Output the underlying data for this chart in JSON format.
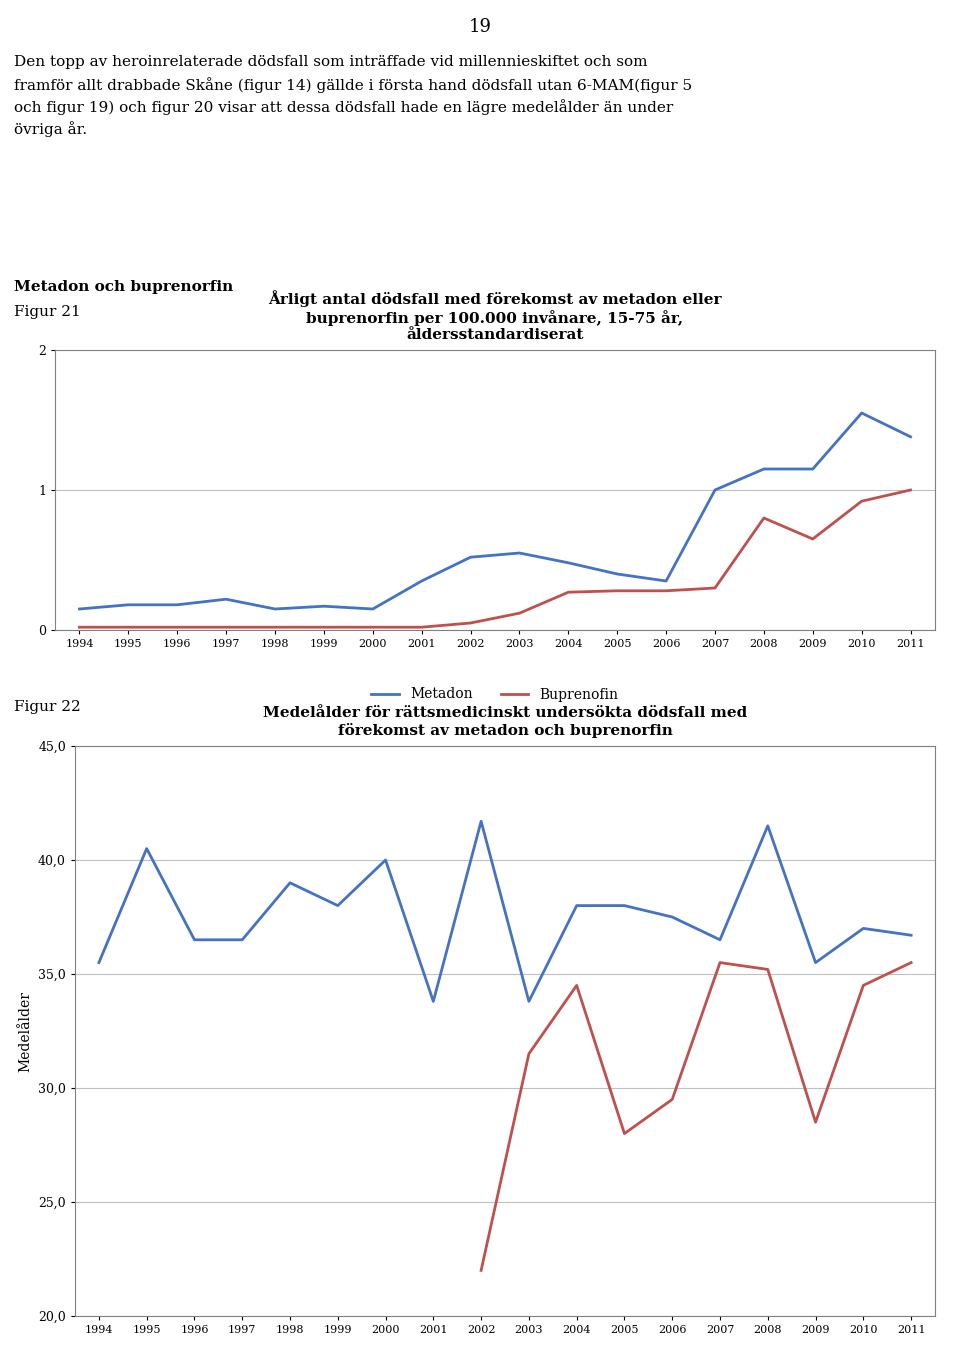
{
  "page_number": "19",
  "body_text": "Den topp av heroinrelaterade dödsfall som inträffade vid millennieskiftet och som\nframför allt drabbade Skåne (figur 14) gällde i första hand dödsfall utan 6-MAM(figur 5\noch figur 19) och figur 20 visar att dessa dödsfall hade en lägre medelålder än under\növriga år.",
  "section_heading": "Metadon och buprenorfin",
  "fig21_label": "Figur 21",
  "fig22_label": "Figur 22",
  "fig21_title": "Årligt antal dödsfall med förekomst av metadon eller\nbuprenorfin per 100.000 invånare, 15-75 år,\nåldersstandardiserat",
  "fig22_title": "Medelålder för rättsmedicinskt undersökta dödsfall med\nförekomst av metadon och buprenorfin",
  "years": [
    1994,
    1995,
    1996,
    1997,
    1998,
    1999,
    2000,
    2001,
    2002,
    2003,
    2004,
    2005,
    2006,
    2007,
    2008,
    2009,
    2010,
    2011
  ],
  "fig21_metadon": [
    0.15,
    0.18,
    0.18,
    0.22,
    0.15,
    0.17,
    0.15,
    0.35,
    0.52,
    0.55,
    0.48,
    0.4,
    0.35,
    1.0,
    1.15,
    1.15,
    1.55,
    1.38
  ],
  "fig21_buprenorfin": [
    0.02,
    0.02,
    0.02,
    0.02,
    0.02,
    0.02,
    0.02,
    0.02,
    0.05,
    0.12,
    0.27,
    0.28,
    0.28,
    0.3,
    0.8,
    0.65,
    0.92,
    1.0
  ],
  "fig21_ylim": [
    0,
    2
  ],
  "fig21_yticks": [
    0,
    1,
    2
  ],
  "fig22_years": [
    1994,
    1995,
    1996,
    1997,
    1998,
    1999,
    2000,
    2001,
    2002,
    2003,
    2004,
    2005,
    2006,
    2007,
    2008,
    2009,
    2010,
    2011
  ],
  "fig22_metadon": [
    35.5,
    40.5,
    36.5,
    36.5,
    39.0,
    38.0,
    40.0,
    33.8,
    41.7,
    33.8,
    38.0,
    38.0,
    37.5,
    36.5,
    41.5,
    35.5,
    37.0,
    36.7
  ],
  "fig22_buprenorfin_years": [
    2002,
    2003,
    2004,
    2005,
    2006,
    2007,
    2008,
    2009,
    2010,
    2011
  ],
  "fig22_buprenorfin": [
    22.0,
    31.5,
    34.5,
    28.0,
    29.5,
    35.5,
    35.2,
    28.5,
    34.5,
    35.5
  ],
  "fig22_ylim": [
    20.0,
    45.0
  ],
  "fig22_yticks": [
    20.0,
    25.0,
    30.0,
    35.0,
    40.0,
    45.0
  ],
  "fig22_ylabel": "Medelålder",
  "metadon_color": "#4472C4",
  "buprenorfin_color": "#C0504D",
  "background_color": "#ffffff",
  "plot_bg_color": "#ffffff",
  "grid_color": "#c0c0c0",
  "border_color": "#808080"
}
